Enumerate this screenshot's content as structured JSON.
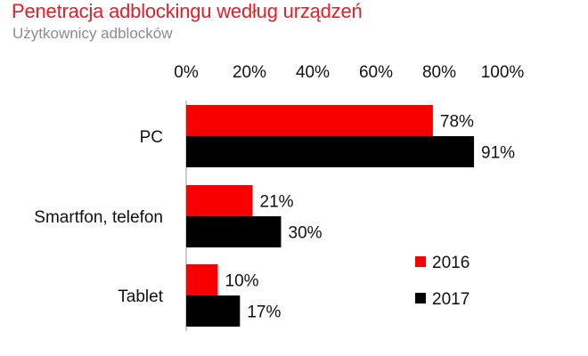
{
  "header": {
    "title": "Penetracja adblockingu według urządzeń",
    "subtitle": "Użytkownicy adblocków"
  },
  "chart_data": {
    "type": "bar",
    "orientation": "horizontal",
    "title": "Penetracja adblockingu według urządzeń",
    "subtitle": "Użytkownicy adblocków",
    "categories": [
      "PC",
      "Smartfon, telefon",
      "Tablet"
    ],
    "series": [
      {
        "name": "2016",
        "color": "#f90000",
        "values": [
          78,
          21,
          10
        ],
        "labels": [
          "78%",
          "21%",
          "10%"
        ]
      },
      {
        "name": "2017",
        "color": "#000000",
        "values": [
          91,
          30,
          17
        ],
        "labels": [
          "91%",
          "30%",
          "17%"
        ]
      }
    ],
    "xlim": [
      0,
      100
    ],
    "xticks": [
      0,
      20,
      40,
      60,
      80,
      100
    ],
    "xtick_labels": [
      "0%",
      "20%",
      "40%",
      "60%",
      "80%",
      "100%"
    ],
    "axis_position": "top",
    "grid": false,
    "legend": {
      "position": "bottom-right",
      "entries": [
        "2016",
        "2017"
      ]
    }
  }
}
